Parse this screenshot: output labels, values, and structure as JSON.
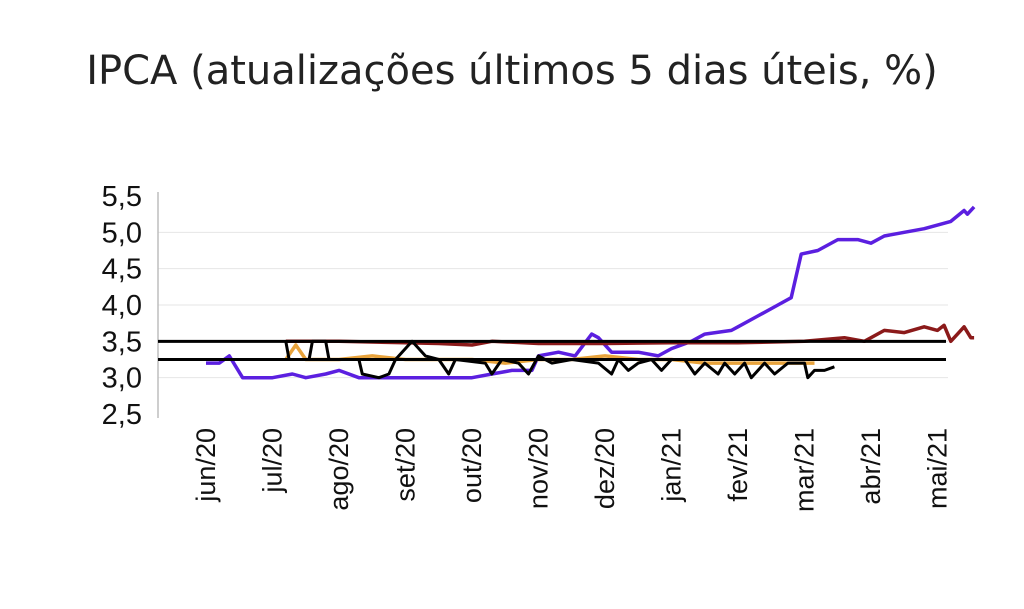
{
  "chart_data": {
    "type": "line",
    "title": "IPCA (atualizações últimos 5 dias úteis, %)",
    "xlabel": "",
    "ylabel": "",
    "ylim": [
      2.5,
      5.5
    ],
    "yticks": [
      "5,5",
      "5,0",
      "4,5",
      "4,0",
      "3,5",
      "3,0",
      "2,5"
    ],
    "xticks": [
      "jun/20",
      "jul/20",
      "ago/20",
      "set/20",
      "out/20",
      "nov/20",
      "dez/20",
      "jan/21",
      "fev/21",
      "mar/21",
      "abr/21",
      "mai/21"
    ],
    "grid": true,
    "reference_lines": [
      {
        "y": 3.5,
        "color": "#000000"
      },
      {
        "y": 3.25,
        "color": "#000000"
      }
    ],
    "series": [
      {
        "color": "#5b1fe0",
        "points": [
          [
            0.0,
            3.2
          ],
          [
            0.2,
            3.2
          ],
          [
            0.35,
            3.3
          ],
          [
            0.55,
            3.0
          ],
          [
            1.0,
            3.0
          ],
          [
            1.3,
            3.05
          ],
          [
            1.5,
            3.0
          ],
          [
            1.8,
            3.05
          ],
          [
            2.0,
            3.1
          ],
          [
            2.3,
            3.0
          ],
          [
            3.0,
            3.0
          ],
          [
            3.5,
            3.0
          ],
          [
            4.0,
            3.0
          ],
          [
            4.3,
            3.05
          ],
          [
            4.6,
            3.1
          ],
          [
            4.9,
            3.1
          ],
          [
            5.0,
            3.3
          ],
          [
            5.3,
            3.35
          ],
          [
            5.55,
            3.3
          ],
          [
            5.8,
            3.6
          ],
          [
            5.9,
            3.55
          ],
          [
            6.1,
            3.35
          ],
          [
            6.5,
            3.35
          ],
          [
            6.8,
            3.3
          ],
          [
            7.0,
            3.4
          ],
          [
            7.3,
            3.5
          ],
          [
            7.5,
            3.6
          ],
          [
            7.9,
            3.65
          ],
          [
            8.0,
            3.7
          ],
          [
            8.3,
            3.85
          ],
          [
            8.6,
            4.0
          ],
          [
            8.8,
            4.1
          ],
          [
            8.95,
            4.7
          ],
          [
            9.2,
            4.75
          ],
          [
            9.5,
            4.9
          ],
          [
            9.8,
            4.9
          ],
          [
            10.0,
            4.85
          ],
          [
            10.2,
            4.95
          ],
          [
            10.5,
            5.0
          ],
          [
            10.8,
            5.05
          ],
          [
            11.0,
            5.1
          ],
          [
            11.2,
            5.15
          ],
          [
            11.4,
            5.3
          ],
          [
            11.45,
            5.25
          ],
          [
            11.55,
            5.35
          ]
        ]
      },
      {
        "color": "#8b1a1a",
        "points": [
          [
            1.2,
            3.5
          ],
          [
            2.0,
            3.5
          ],
          [
            3.0,
            3.48
          ],
          [
            3.5,
            3.47
          ],
          [
            4.0,
            3.45
          ],
          [
            4.3,
            3.5
          ],
          [
            5.0,
            3.47
          ],
          [
            6.0,
            3.47
          ],
          [
            7.0,
            3.48
          ],
          [
            8.0,
            3.48
          ],
          [
            9.0,
            3.5
          ],
          [
            9.6,
            3.55
          ],
          [
            9.9,
            3.5
          ],
          [
            10.2,
            3.65
          ],
          [
            10.5,
            3.62
          ],
          [
            10.8,
            3.7
          ],
          [
            11.0,
            3.65
          ],
          [
            11.1,
            3.72
          ],
          [
            11.2,
            3.5
          ],
          [
            11.3,
            3.6
          ],
          [
            11.4,
            3.7
          ],
          [
            11.5,
            3.55
          ],
          [
            11.55,
            3.55
          ]
        ]
      },
      {
        "color": "#e8a33c",
        "points": [
          [
            1.2,
            3.25
          ],
          [
            1.35,
            3.45
          ],
          [
            1.5,
            3.25
          ],
          [
            2.0,
            3.25
          ],
          [
            2.5,
            3.3
          ],
          [
            3.0,
            3.25
          ],
          [
            3.5,
            3.25
          ],
          [
            4.0,
            3.25
          ],
          [
            4.5,
            3.2
          ],
          [
            5.0,
            3.25
          ],
          [
            5.5,
            3.25
          ],
          [
            6.0,
            3.3
          ],
          [
            6.5,
            3.25
          ],
          [
            7.0,
            3.25
          ],
          [
            7.5,
            3.2
          ],
          [
            8.0,
            3.2
          ],
          [
            8.5,
            3.2
          ],
          [
            9.0,
            3.2
          ],
          [
            9.15,
            3.2
          ]
        ]
      },
      {
        "color": "#000000",
        "points": [
          [
            1.2,
            3.5
          ],
          [
            1.25,
            3.25
          ],
          [
            1.55,
            3.25
          ],
          [
            1.6,
            3.5
          ],
          [
            1.8,
            3.5
          ],
          [
            1.85,
            3.25
          ],
          [
            2.3,
            3.25
          ],
          [
            2.35,
            3.05
          ],
          [
            2.6,
            3.0
          ],
          [
            2.75,
            3.05
          ],
          [
            2.85,
            3.25
          ],
          [
            3.1,
            3.5
          ],
          [
            3.3,
            3.3
          ],
          [
            3.5,
            3.25
          ],
          [
            3.65,
            3.05
          ],
          [
            3.75,
            3.25
          ],
          [
            4.2,
            3.2
          ],
          [
            4.3,
            3.05
          ],
          [
            4.45,
            3.25
          ],
          [
            4.7,
            3.2
          ],
          [
            4.85,
            3.05
          ],
          [
            5.0,
            3.3
          ],
          [
            5.2,
            3.2
          ],
          [
            5.5,
            3.25
          ],
          [
            5.9,
            3.2
          ],
          [
            6.1,
            3.05
          ],
          [
            6.2,
            3.25
          ],
          [
            6.35,
            3.1
          ],
          [
            6.5,
            3.2
          ],
          [
            6.7,
            3.25
          ],
          [
            6.85,
            3.1
          ],
          [
            7.0,
            3.25
          ],
          [
            7.2,
            3.25
          ],
          [
            7.35,
            3.05
          ],
          [
            7.5,
            3.2
          ],
          [
            7.7,
            3.05
          ],
          [
            7.8,
            3.2
          ],
          [
            7.95,
            3.05
          ],
          [
            8.1,
            3.2
          ],
          [
            8.2,
            3.0
          ],
          [
            8.4,
            3.2
          ],
          [
            8.55,
            3.05
          ],
          [
            8.75,
            3.2
          ],
          [
            9.0,
            3.2
          ],
          [
            9.05,
            3.0
          ],
          [
            9.15,
            3.1
          ],
          [
            9.3,
            3.1
          ],
          [
            9.45,
            3.15
          ]
        ]
      }
    ]
  }
}
